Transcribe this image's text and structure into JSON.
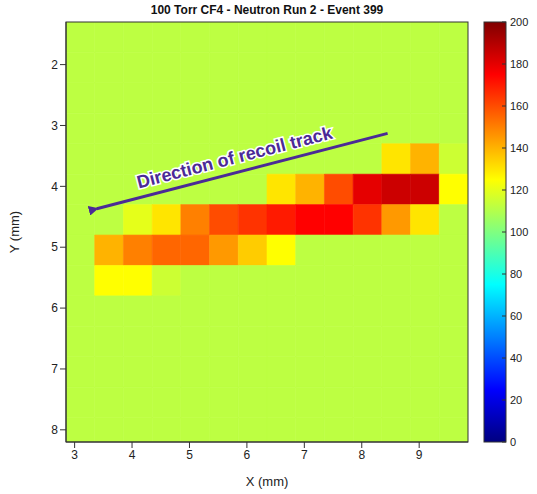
{
  "chart_data": {
    "type": "heatmap",
    "title": "100 Torr CF4 - Neutron Run 2 - Event 399",
    "x_label": "X (mm)",
    "y_label": "Y (mm)",
    "x": [
      3.1,
      3.6,
      4.1,
      4.6,
      5.1,
      5.6,
      6.1,
      6.6,
      7.1,
      7.6,
      8.1,
      8.6,
      9.1,
      9.6
    ],
    "y": [
      1.55,
      2.05,
      2.55,
      3.05,
      3.55,
      4.05,
      4.55,
      5.05,
      5.55,
      6.05,
      6.55,
      7.05,
      7.55,
      8.05
    ],
    "cells": [
      [
        112,
        112,
        112,
        112,
        112,
        112,
        112,
        112,
        112,
        112,
        112,
        112,
        112,
        112
      ],
      [
        112,
        112,
        112,
        112,
        112,
        112,
        112,
        112,
        112,
        112,
        112,
        112,
        112,
        112
      ],
      [
        112,
        112,
        112,
        112,
        112,
        112,
        112,
        112,
        112,
        112,
        112,
        112,
        112,
        112
      ],
      [
        112,
        112,
        112,
        112,
        112,
        112,
        112,
        112,
        112,
        112,
        112,
        112,
        112,
        112
      ],
      [
        112,
        112,
        112,
        112,
        112,
        112,
        112,
        112,
        112,
        112,
        112,
        130,
        140,
        115
      ],
      [
        112,
        112,
        112,
        112,
        112,
        112,
        112,
        130,
        140,
        160,
        180,
        185,
        185,
        125
      ],
      [
        112,
        112,
        120,
        130,
        150,
        160,
        165,
        170,
        175,
        175,
        165,
        145,
        130,
        112
      ],
      [
        112,
        140,
        150,
        155,
        155,
        145,
        135,
        125,
        112,
        112,
        112,
        112,
        112,
        112
      ],
      [
        112,
        125,
        125,
        115,
        112,
        112,
        112,
        112,
        112,
        112,
        112,
        112,
        112,
        112
      ],
      [
        112,
        112,
        112,
        112,
        112,
        112,
        112,
        112,
        112,
        112,
        112,
        112,
        112,
        112
      ],
      [
        112,
        112,
        112,
        112,
        112,
        112,
        112,
        112,
        112,
        112,
        112,
        112,
        112,
        112
      ],
      [
        112,
        112,
        112,
        112,
        112,
        112,
        112,
        112,
        112,
        112,
        112,
        112,
        112,
        112
      ],
      [
        112,
        112,
        112,
        112,
        112,
        112,
        112,
        112,
        112,
        112,
        112,
        112,
        112,
        112
      ],
      [
        112,
        112,
        112,
        112,
        112,
        112,
        112,
        112,
        112,
        112,
        112,
        112,
        112,
        112
      ]
    ],
    "xlim": [
      2.85,
      9.85
    ],
    "ylim": [
      8.2,
      1.3
    ],
    "xticks": [
      3,
      4,
      5,
      6,
      7,
      8,
      9
    ],
    "yticks": [
      2,
      3,
      4,
      5,
      6,
      7,
      8
    ],
    "colorbar": {
      "range": [
        0,
        200
      ],
      "ticks": [
        0,
        20,
        40,
        60,
        80,
        100,
        120,
        140,
        160,
        180,
        200
      ]
    },
    "annotations": [
      {
        "text": "Direction of recoil track",
        "arrow_from": [
          8.45,
          3.13
        ],
        "arrow_to": [
          3.25,
          4.4
        ]
      }
    ]
  }
}
